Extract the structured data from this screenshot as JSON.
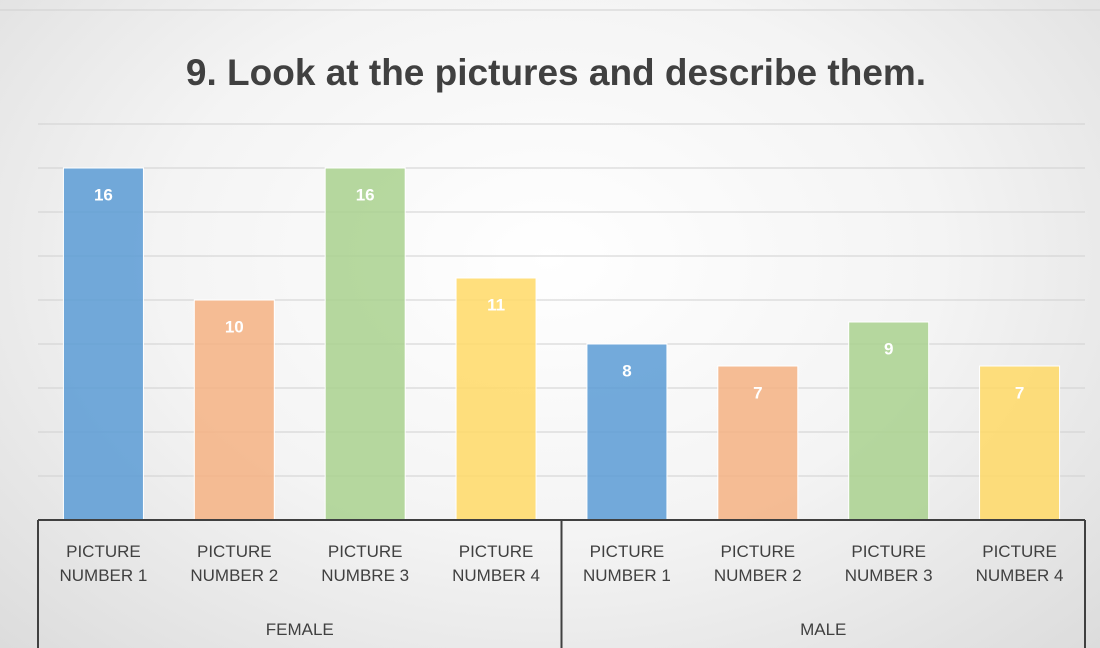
{
  "chart_data": {
    "type": "bar",
    "title": "9. Look at the pictures and describe them.",
    "categories": [
      "PICTURE NUMBER 1",
      "PICTURE NUMBER 2",
      "PICTURE NUMBRE 3",
      "PICTURE NUMBER 4",
      "PICTURE NUMBER 1",
      "PICTURE NUMBER 2",
      "PICTURE NUMBER 3",
      "PICTURE NUMBER 4"
    ],
    "groups": [
      {
        "name": "FEMALE",
        "size": 4
      },
      {
        "name": "MALE",
        "size": 4
      }
    ],
    "values": [
      16,
      10,
      16,
      11,
      8,
      7,
      9,
      7
    ],
    "colors": [
      "#5b9bd5",
      "#f4b183",
      "#a9d18e",
      "#ffd966",
      "#5b9bd5",
      "#f4b183",
      "#a9d18e",
      "#ffd966"
    ],
    "ylim": [
      0,
      18
    ],
    "yticks": [
      0,
      2,
      4,
      6,
      8,
      10,
      12,
      14,
      16,
      18
    ],
    "grid": true
  }
}
